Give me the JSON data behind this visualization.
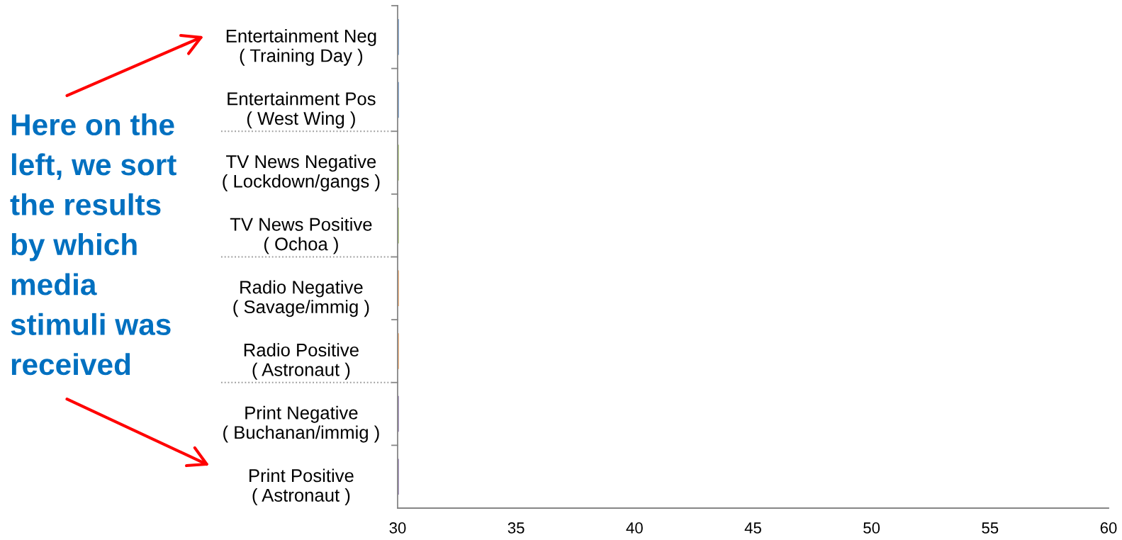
{
  "chart_data": {
    "type": "bar",
    "orientation": "horizontal",
    "categories": [
      "Entertainment Neg\n( Training Day )",
      "Entertainment Pos\n( West Wing )",
      "TV News Negative\n( Lockdown/gangs )",
      "TV News Positive\n( Ochoa )",
      "Radio Negative\n( Savage/immig )",
      "Radio Positive\n( Astronaut )",
      "Print Negative\n( Buchanan/immig )",
      "Print Positive\n( Astronaut )"
    ],
    "values": [
      30.05,
      30.05,
      30.05,
      30.05,
      30.05,
      30.05,
      30.05,
      30.05
    ],
    "colors": [
      "#4f81bd",
      "#4f81bd",
      "#9bbb59",
      "#9bbb59",
      "#f79646",
      "#f79646",
      "#8064a2",
      "#8064a2"
    ],
    "xlim": [
      30,
      60
    ],
    "xticks": [
      30,
      35,
      40,
      45,
      50,
      55,
      60
    ],
    "annotations": [
      "Here on the\nleft, we sort\nthe results\nby which\nmedia\nstimuli was\nreceived"
    ]
  }
}
